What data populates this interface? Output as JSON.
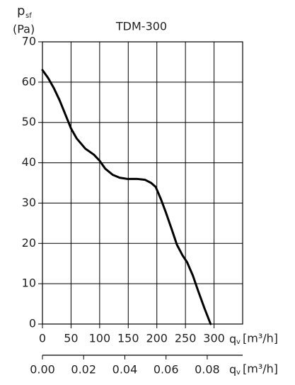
{
  "chart_data": {
    "type": "line",
    "title": "TDM-300",
    "y_label": "p",
    "y_label_sub": "sf",
    "y_unit": "(Pa)",
    "x_label": "q",
    "x_label_sub": "v",
    "x_unit": "[m³/h]",
    "x2_label": "q",
    "x2_label_sub": "v",
    "x2_unit": "[m³/h]",
    "x": [
      0,
      10,
      20,
      30,
      40,
      50,
      60,
      75,
      90,
      100,
      110,
      123,
      135,
      148,
      165,
      179,
      190,
      198,
      207,
      216,
      226,
      235,
      245,
      253,
      263,
      272,
      283,
      294
    ],
    "series": [
      {
        "color": "#000000",
        "values": [
          63,
          61,
          58.5,
          55.5,
          52,
          48.5,
          46,
          43.5,
          42,
          40.5,
          38.5,
          37,
          36.3,
          36,
          36,
          35.8,
          35,
          34,
          31,
          27.6,
          23.5,
          19.7,
          17,
          15.3,
          12,
          8.3,
          4,
          0
        ]
      }
    ],
    "xlim": [
      0,
      350
    ],
    "xticks": [
      0,
      50,
      100,
      150,
      200,
      250,
      300
    ],
    "ylim": [
      0,
      70
    ],
    "yticks": [
      0,
      10,
      20,
      30,
      40,
      50,
      60,
      70
    ],
    "x2lim": [
      0,
      0.0972
    ],
    "x2ticks": [
      {
        "value": 0,
        "label": "0.00"
      },
      {
        "value": 0.02,
        "label": "0.02"
      },
      {
        "value": 0.04,
        "label": "0.04"
      },
      {
        "value": 0.06,
        "label": "0.06"
      },
      {
        "value": 0.08,
        "label": "0.08"
      }
    ],
    "grid": true
  }
}
